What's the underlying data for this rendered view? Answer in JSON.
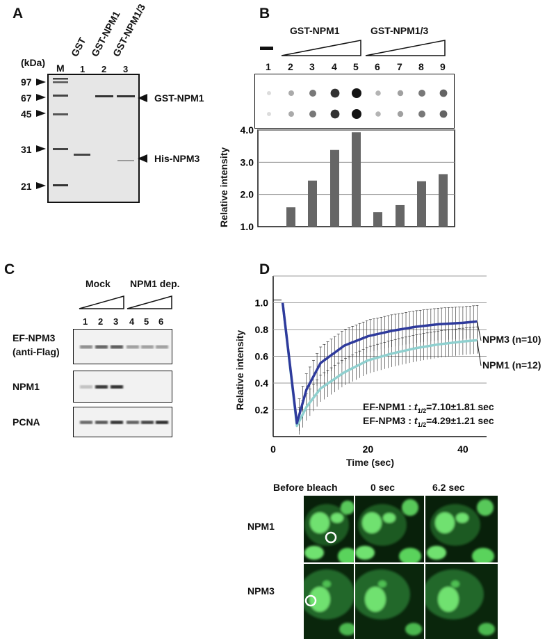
{
  "panels": {
    "a": "A",
    "b": "B",
    "c": "C",
    "d": "D"
  },
  "panel_a": {
    "unit": "(kDa)",
    "markers": [
      "97",
      "67",
      "45",
      "31",
      "21"
    ],
    "lane_heads": [
      "GST",
      "GST-NPM1",
      "GST-NPM1/3"
    ],
    "lane_m": "M",
    "lane_nums": [
      "1",
      "2",
      "3"
    ],
    "band_labels": [
      "GST-NPM1",
      "His-NPM3"
    ]
  },
  "panel_b": {
    "groups": [
      "GST-NPM1",
      "GST-NPM1/3"
    ],
    "lanes": [
      "1",
      "2",
      "3",
      "4",
      "5",
      "6",
      "7",
      "8",
      "9"
    ],
    "dot_intensity": [
      0,
      0.25,
      0.5,
      0.85,
      1,
      0.2,
      0.3,
      0.5,
      0.6
    ],
    "chart_data": {
      "type": "bar",
      "categories": [
        "1",
        "2",
        "3",
        "4",
        "5",
        "6",
        "7",
        "8",
        "9"
      ],
      "values": [
        1.0,
        1.6,
        2.43,
        3.38,
        3.93,
        1.45,
        1.67,
        2.41,
        2.63
      ],
      "ylabel": "Relative intensity",
      "yticks": [
        "1.0",
        "2.0",
        "3.0",
        "4.0"
      ],
      "ylim": [
        1.0,
        4.0
      ],
      "grid": true
    }
  },
  "panel_c": {
    "groups": [
      "Mock",
      "NPM1 dep."
    ],
    "lanes": [
      "1",
      "2",
      "3",
      "4",
      "5",
      "6"
    ],
    "rows": [
      {
        "label1": "EF-NPM3",
        "label2": "(anti-Flag)",
        "bands": [
          0.35,
          0.6,
          0.65,
          0.25,
          0.25,
          0.25
        ]
      },
      {
        "label1": "NPM1",
        "label2": "",
        "bands": [
          0.05,
          0.85,
          0.9,
          0,
          0,
          0
        ]
      },
      {
        "label1": "PCNA",
        "label2": "",
        "bands": [
          0.55,
          0.65,
          0.85,
          0.6,
          0.75,
          0.9
        ]
      }
    ]
  },
  "panel_d": {
    "chart_data": {
      "type": "line",
      "xlabel": "Time (sec)",
      "ylabel": "Relative intensity",
      "xlim": [
        0,
        45
      ],
      "ylim": [
        0,
        1.2
      ],
      "xticks": [
        "0",
        "20",
        "40"
      ],
      "yticks": [
        "0.2",
        "0.4",
        "0.6",
        "0.8",
        "1.0"
      ],
      "series": [
        {
          "name": "NPM3 (n=10)",
          "color": "#2e3a9c",
          "x": [
            2,
            5,
            7,
            10,
            15,
            20,
            25,
            30,
            35,
            40,
            43
          ],
          "y": [
            1.0,
            0.1,
            0.35,
            0.55,
            0.68,
            0.75,
            0.79,
            0.82,
            0.84,
            0.85,
            0.86
          ]
        },
        {
          "name": "NPM1 (n=12)",
          "color": "#8fd0cf",
          "x": [
            2,
            5,
            7,
            10,
            15,
            20,
            25,
            30,
            35,
            40,
            43
          ],
          "y": [
            1.0,
            0.08,
            0.22,
            0.36,
            0.48,
            0.57,
            0.62,
            0.66,
            0.69,
            0.71,
            0.72
          ]
        }
      ],
      "annotations": [
        {
          "pre": "EF-NPM1 : ",
          "t": "t",
          "sub": "1/2",
          "post": "=7.10±1.81 sec"
        },
        {
          "pre": "EF-NPM3 : ",
          "t": "t",
          "sub": "1/2",
          "post": "=4.29±1.21 sec"
        }
      ]
    },
    "image_cols": [
      "Before bleach",
      "0 sec",
      "6.2 sec"
    ],
    "image_rows": [
      "NPM1",
      "NPM3"
    ]
  }
}
